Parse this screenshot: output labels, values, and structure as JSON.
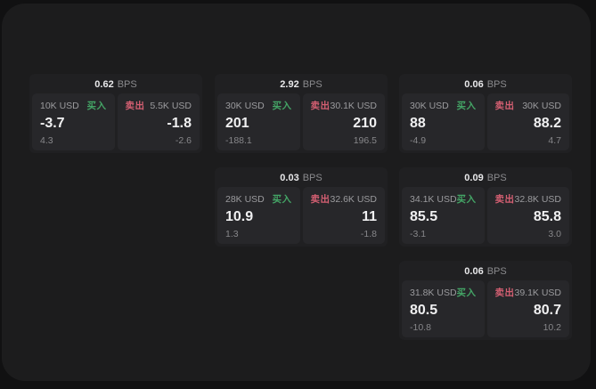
{
  "theme": {
    "outer_bg": "#111112",
    "panel_bg": "#1c1c1d",
    "card_bg": "#202022",
    "cell_bg": "#27272a",
    "buy_color": "#44a566",
    "sell_color": "#d45f72"
  },
  "labels": {
    "bps": "BPS",
    "buy": "买入",
    "sell": "卖出"
  },
  "cards": [
    {
      "bps": "0.62",
      "row": 1,
      "col": 1,
      "buy": {
        "amount": "10K USD",
        "value": "-3.7",
        "sub": "4.3"
      },
      "sell": {
        "amount": "5.5K USD",
        "value": "-1.8",
        "sub": "-2.6"
      }
    },
    {
      "bps": "2.92",
      "row": 1,
      "col": 2,
      "buy": {
        "amount": "30K USD",
        "value": "201",
        "sub": "-188.1"
      },
      "sell": {
        "amount": "30.1K USD",
        "value": "210",
        "sub": "196.5"
      }
    },
    {
      "bps": "0.06",
      "row": 1,
      "col": 3,
      "buy": {
        "amount": "30K USD",
        "value": "88",
        "sub": "-4.9"
      },
      "sell": {
        "amount": "30K USD",
        "value": "88.2",
        "sub": "4.7"
      }
    },
    {
      "bps": "0.03",
      "row": 2,
      "col": 2,
      "buy": {
        "amount": "28K USD",
        "value": "10.9",
        "sub": "1.3"
      },
      "sell": {
        "amount": "32.6K USD",
        "value": "11",
        "sub": "-1.8"
      }
    },
    {
      "bps": "0.09",
      "row": 2,
      "col": 3,
      "buy": {
        "amount": "34.1K USD",
        "value": "85.5",
        "sub": "-3.1"
      },
      "sell": {
        "amount": "32.8K USD",
        "value": "85.8",
        "sub": "3.0"
      }
    },
    {
      "bps": "0.06",
      "row": 3,
      "col": 3,
      "buy": {
        "amount": "31.8K USD",
        "value": "80.5",
        "sub": "-10.8"
      },
      "sell": {
        "amount": "39.1K USD",
        "value": "80.7",
        "sub": "10.2"
      }
    }
  ]
}
